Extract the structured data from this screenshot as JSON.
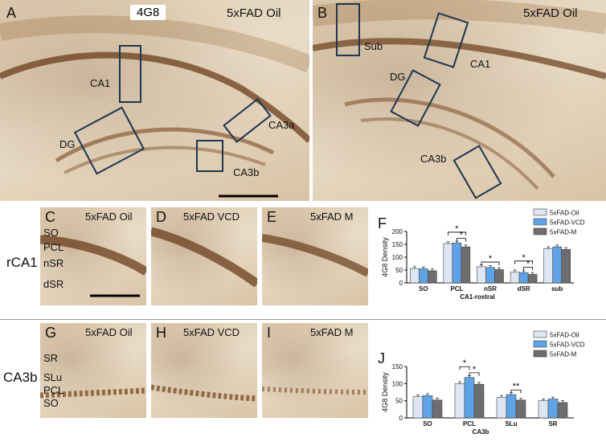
{
  "panelA": {
    "letter": "A",
    "stain": "4G8",
    "condition": "5xFAD Oil",
    "regions": [
      "CA1",
      "DG",
      "CA3a",
      "CA3b"
    ]
  },
  "panelB": {
    "letter": "B",
    "condition": "5xFAD Oil",
    "regions": [
      "Sub",
      "CA1",
      "DG",
      "CA3b"
    ]
  },
  "row1": {
    "label": "rCA1",
    "layers": [
      "SO",
      "PCL",
      "nSR",
      "dSR"
    ],
    "panels": [
      {
        "letter": "C",
        "condition": "5xFAD Oil"
      },
      {
        "letter": "D",
        "condition": "5xFAD VCD"
      },
      {
        "letter": "E",
        "condition": "5xFAD M"
      }
    ]
  },
  "row2": {
    "label": "CA3b",
    "layers": [
      "SR",
      "SLu",
      "PCL",
      "SO"
    ],
    "panels": [
      {
        "letter": "G",
        "condition": "5xFAD Oil"
      },
      {
        "letter": "H",
        "condition": "5xFAD VCD"
      },
      {
        "letter": "I",
        "condition": "5xFAD M"
      }
    ]
  },
  "colors": {
    "oil": "#dde6f2",
    "vcd": "#5fa3e6",
    "m": "#6d6d6d",
    "roi": "#1f3550"
  },
  "chart_data": [
    {
      "panel": "F",
      "type": "bar",
      "ylabel": "4G8 Density",
      "xlabel": "CA1-rostral",
      "ylim": [
        0,
        200
      ],
      "yticks": [
        0,
        50,
        100,
        150,
        200
      ],
      "categories": [
        "SO",
        "PCL",
        "nSR",
        "dSR",
        "sub"
      ],
      "legend": [
        "5xFAD-Oil",
        "5xFAD-VCD",
        "5xFAD-M"
      ],
      "legend_position": "top-right",
      "series": [
        {
          "name": "5xFAD-Oil",
          "values": [
            56,
            153,
            63,
            43,
            133
          ]
        },
        {
          "name": "5xFAD-VCD",
          "values": [
            55,
            155,
            60,
            40,
            140
          ]
        },
        {
          "name": "5xFAD-M",
          "values": [
            47,
            140,
            52,
            33,
            130
          ]
        }
      ],
      "annotations": [
        {
          "category": "PCL",
          "from": 0,
          "to": 2,
          "label": "*"
        },
        {
          "category": "PCL",
          "from": 1,
          "to": 2,
          "label": "*"
        },
        {
          "category": "nSR",
          "from": 0,
          "to": 2,
          "label": "*"
        },
        {
          "category": "dSR",
          "from": 0,
          "to": 2,
          "label": "*"
        },
        {
          "category": "dSR",
          "from": 1,
          "to": 2,
          "label": "*"
        }
      ]
    },
    {
      "panel": "J",
      "type": "bar",
      "ylabel": "4G8 Density",
      "xlabel": "CA3b",
      "ylim": [
        0,
        150
      ],
      "yticks": [
        0,
        50,
        100,
        150
      ],
      "categories": [
        "SO",
        "PCL",
        "SLu",
        "SR"
      ],
      "legend": [
        "5xFAD-Oil",
        "5xFAD-VCD",
        "5xFAD-M"
      ],
      "legend_position": "top-right",
      "series": [
        {
          "name": "5xFAD-Oil",
          "values": [
            62,
            100,
            60,
            50
          ]
        },
        {
          "name": "5xFAD-VCD",
          "values": [
            65,
            118,
            68,
            55
          ]
        },
        {
          "name": "5xFAD-M",
          "values": [
            52,
            98,
            52,
            45
          ]
        }
      ],
      "annotations": [
        {
          "category": "PCL",
          "from": 0,
          "to": 1,
          "label": "*"
        },
        {
          "category": "PCL",
          "from": 1,
          "to": 2,
          "label": "*"
        },
        {
          "category": "SLu",
          "from": 1,
          "to": 2,
          "label": "**"
        }
      ]
    }
  ]
}
